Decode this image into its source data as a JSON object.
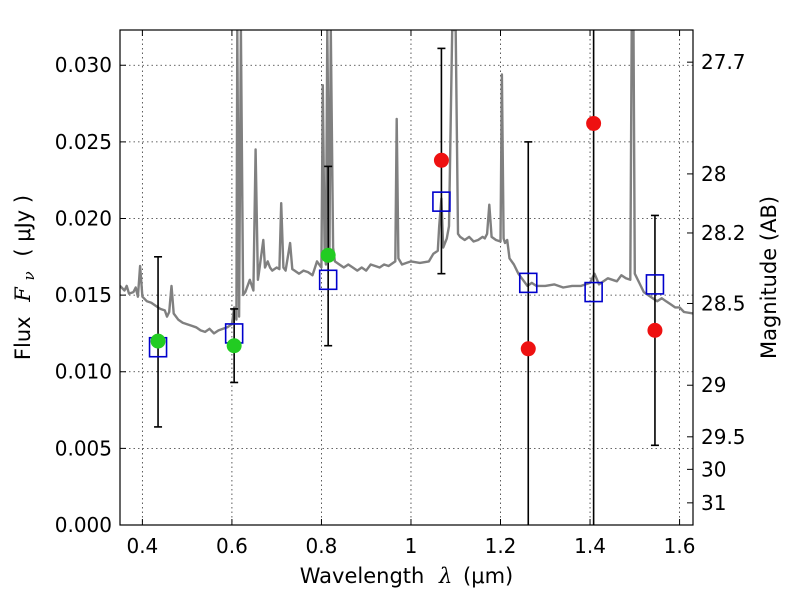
{
  "chart_data": {
    "type": "scatter",
    "xlabel_prefix": "Wavelength",
    "xlabel_symbol": "λ",
    "xlabel_unit": "(μm)",
    "ylabel_prefix": "Flux",
    "ylabel_symbol": "F",
    "ylabel_subscript": "ν",
    "ylabel_unit": "( μJy )",
    "y2label": "Magnitude (AB)",
    "xlim": [
      0.35,
      1.63
    ],
    "ylim": [
      0.0,
      0.0323
    ],
    "grid": true,
    "x_ticks": [
      {
        "value": 0.4,
        "label": "0.4"
      },
      {
        "value": 0.6,
        "label": "0.6"
      },
      {
        "value": 0.8,
        "label": "0.8"
      },
      {
        "value": 1.0,
        "label": "1"
      },
      {
        "value": 1.2,
        "label": "1.2"
      },
      {
        "value": 1.4,
        "label": "1.4"
      },
      {
        "value": 1.6,
        "label": "1.6"
      }
    ],
    "y_ticks": [
      {
        "value": 0.0,
        "label": "0.000"
      },
      {
        "value": 0.005,
        "label": "0.005"
      },
      {
        "value": 0.01,
        "label": "0.010"
      },
      {
        "value": 0.015,
        "label": "0.015"
      },
      {
        "value": 0.02,
        "label": "0.020"
      },
      {
        "value": 0.025,
        "label": "0.025"
      },
      {
        "value": 0.03,
        "label": "0.030"
      }
    ],
    "y2_ticks": [
      {
        "value": 27.7,
        "label": "27.7"
      },
      {
        "value": 28.0,
        "label": "28"
      },
      {
        "value": 28.2,
        "label": "28.2"
      },
      {
        "value": 28.5,
        "label": "28.5"
      },
      {
        "value": 29.0,
        "label": "29"
      },
      {
        "value": 29.5,
        "label": "29.5"
      },
      {
        "value": 30.0,
        "label": "30"
      },
      {
        "value": 31.0,
        "label": "31"
      }
    ],
    "colors": {
      "spectrum": "#808080",
      "model_square": "#0000cc",
      "obs_green": "#22cc22",
      "obs_red": "#ee1111",
      "errorbar": "#000000",
      "grid": "#333333"
    },
    "spectrum": [
      [
        0.35,
        0.0156
      ],
      [
        0.36,
        0.0153
      ],
      [
        0.365,
        0.0156
      ],
      [
        0.37,
        0.0151
      ],
      [
        0.38,
        0.0152
      ],
      [
        0.385,
        0.0155
      ],
      [
        0.39,
        0.0149
      ],
      [
        0.395,
        0.0169
      ],
      [
        0.4,
        0.0149
      ],
      [
        0.41,
        0.0146
      ],
      [
        0.42,
        0.0145
      ],
      [
        0.43,
        0.0143
      ],
      [
        0.44,
        0.0141
      ],
      [
        0.45,
        0.014
      ],
      [
        0.455,
        0.0136
      ],
      [
        0.46,
        0.0139
      ],
      [
        0.465,
        0.0156
      ],
      [
        0.47,
        0.0138
      ],
      [
        0.48,
        0.0134
      ],
      [
        0.49,
        0.0132
      ],
      [
        0.5,
        0.0131
      ],
      [
        0.51,
        0.013
      ],
      [
        0.52,
        0.0129
      ],
      [
        0.53,
        0.0127
      ],
      [
        0.54,
        0.0126
      ],
      [
        0.55,
        0.0128
      ],
      [
        0.56,
        0.0125
      ],
      [
        0.57,
        0.0127
      ],
      [
        0.58,
        0.0128
      ],
      [
        0.59,
        0.0129
      ],
      [
        0.6,
        0.0131
      ],
      [
        0.605,
        0.0142
      ],
      [
        0.61,
        0.0134
      ],
      [
        0.612,
        0.0323
      ],
      [
        0.616,
        0.0136
      ],
      [
        0.62,
        0.0323
      ],
      [
        0.625,
        0.015
      ],
      [
        0.63,
        0.0152
      ],
      [
        0.64,
        0.016
      ],
      [
        0.648,
        0.0153
      ],
      [
        0.653,
        0.0245
      ],
      [
        0.658,
        0.016
      ],
      [
        0.66,
        0.0164
      ],
      [
        0.67,
        0.0186
      ],
      [
        0.674,
        0.0168
      ],
      [
        0.68,
        0.0172
      ],
      [
        0.685,
        0.0168
      ],
      [
        0.69,
        0.0166
      ],
      [
        0.7,
        0.0168
      ],
      [
        0.706,
        0.0167
      ],
      [
        0.71,
        0.021
      ],
      [
        0.715,
        0.0168
      ],
      [
        0.72,
        0.0166
      ],
      [
        0.73,
        0.0184
      ],
      [
        0.735,
        0.0167
      ],
      [
        0.74,
        0.0166
      ],
      [
        0.75,
        0.0164
      ],
      [
        0.76,
        0.0166
      ],
      [
        0.77,
        0.0165
      ],
      [
        0.78,
        0.0163
      ],
      [
        0.79,
        0.0172
      ],
      [
        0.8,
        0.0168
      ],
      [
        0.803,
        0.0287
      ],
      [
        0.807,
        0.0178
      ],
      [
        0.81,
        0.017
      ],
      [
        0.813,
        0.0323
      ],
      [
        0.818,
        0.0181
      ],
      [
        0.821,
        0.0323
      ],
      [
        0.826,
        0.0181
      ],
      [
        0.83,
        0.0172
      ],
      [
        0.84,
        0.017
      ],
      [
        0.85,
        0.0168
      ],
      [
        0.86,
        0.017
      ],
      [
        0.87,
        0.0168
      ],
      [
        0.88,
        0.0166
      ],
      [
        0.89,
        0.0168
      ],
      [
        0.9,
        0.0166
      ],
      [
        0.91,
        0.017
      ],
      [
        0.92,
        0.0169
      ],
      [
        0.93,
        0.0168
      ],
      [
        0.94,
        0.017
      ],
      [
        0.95,
        0.0169
      ],
      [
        0.96,
        0.0171
      ],
      [
        0.965,
        0.0172
      ],
      [
        0.968,
        0.0265
      ],
      [
        0.972,
        0.0174
      ],
      [
        0.98,
        0.017
      ],
      [
        0.99,
        0.0171
      ],
      [
        1.0,
        0.0172
      ],
      [
        1.02,
        0.0171
      ],
      [
        1.04,
        0.0172
      ],
      [
        1.05,
        0.0177
      ],
      [
        1.06,
        0.0179
      ],
      [
        1.063,
        0.0195
      ],
      [
        1.068,
        0.0213
      ],
      [
        1.072,
        0.0181
      ],
      [
        1.08,
        0.0187
      ],
      [
        1.085,
        0.0195
      ],
      [
        1.092,
        0.0323
      ],
      [
        1.1,
        0.0323
      ],
      [
        1.105,
        0.019
      ],
      [
        1.11,
        0.0188
      ],
      [
        1.12,
        0.0186
      ],
      [
        1.13,
        0.0188
      ],
      [
        1.14,
        0.0185
      ],
      [
        1.15,
        0.0186
      ],
      [
        1.16,
        0.0188
      ],
      [
        1.165,
        0.0187
      ],
      [
        1.17,
        0.019
      ],
      [
        1.175,
        0.0209
      ],
      [
        1.18,
        0.0188
      ],
      [
        1.19,
        0.0186
      ],
      [
        1.2,
        0.0185
      ],
      [
        1.203,
        0.0294
      ],
      [
        1.207,
        0.0187
      ],
      [
        1.21,
        0.0184
      ],
      [
        1.215,
        0.0186
      ],
      [
        1.22,
        0.0174
      ],
      [
        1.23,
        0.017
      ],
      [
        1.24,
        0.0164
      ],
      [
        1.25,
        0.016
      ],
      [
        1.26,
        0.0156
      ],
      [
        1.27,
        0.0158
      ],
      [
        1.28,
        0.0156
      ],
      [
        1.3,
        0.0156
      ],
      [
        1.32,
        0.0157
      ],
      [
        1.34,
        0.0155
      ],
      [
        1.36,
        0.0156
      ],
      [
        1.38,
        0.0156
      ],
      [
        1.4,
        0.0158
      ],
      [
        1.41,
        0.0164
      ],
      [
        1.42,
        0.0157
      ],
      [
        1.43,
        0.0159
      ],
      [
        1.44,
        0.0161
      ],
      [
        1.45,
        0.016
      ],
      [
        1.46,
        0.0159
      ],
      [
        1.47,
        0.0163
      ],
      [
        1.48,
        0.0161
      ],
      [
        1.49,
        0.016
      ],
      [
        1.493,
        0.0323
      ],
      [
        1.497,
        0.0323
      ],
      [
        1.5,
        0.0164
      ],
      [
        1.51,
        0.0158
      ],
      [
        1.52,
        0.0152
      ],
      [
        1.53,
        0.015
      ],
      [
        1.54,
        0.0148
      ],
      [
        1.55,
        0.0146
      ],
      [
        1.56,
        0.0148
      ],
      [
        1.57,
        0.0146
      ],
      [
        1.58,
        0.0144
      ],
      [
        1.59,
        0.0142
      ],
      [
        1.6,
        0.0142
      ],
      [
        1.61,
        0.0139
      ],
      [
        1.63,
        0.0138
      ]
    ],
    "model_points": [
      {
        "x": 0.435,
        "y": 0.0116
      },
      {
        "x": 0.605,
        "y": 0.0125
      },
      {
        "x": 0.815,
        "y": 0.016
      },
      {
        "x": 1.068,
        "y": 0.0211
      },
      {
        "x": 1.262,
        "y": 0.0158
      },
      {
        "x": 1.408,
        "y": 0.0152
      },
      {
        "x": 1.545,
        "y": 0.0157
      }
    ],
    "observed_points": [
      {
        "x": 0.435,
        "y": 0.012,
        "yerr_low": 0.0064,
        "yerr_high": 0.0175,
        "kind": "green"
      },
      {
        "x": 0.605,
        "y": 0.0117,
        "yerr_low": 0.0093,
        "yerr_high": 0.0141,
        "kind": "green"
      },
      {
        "x": 0.815,
        "y": 0.0176,
        "yerr_low": 0.0117,
        "yerr_high": 0.0234,
        "kind": "green"
      },
      {
        "x": 1.068,
        "y": 0.0238,
        "yerr_low": 0.0164,
        "yerr_high": 0.0311,
        "kind": "red"
      },
      {
        "x": 1.262,
        "y": 0.0115,
        "yerr_low": 0.0,
        "yerr_high": 0.025,
        "kind": "red"
      },
      {
        "x": 1.408,
        "y": 0.0262,
        "yerr_low": 0.0,
        "yerr_high": 0.0323,
        "kind": "red"
      },
      {
        "x": 1.545,
        "y": 0.0127,
        "yerr_low": 0.0052,
        "yerr_high": 0.0202,
        "kind": "red"
      }
    ]
  }
}
